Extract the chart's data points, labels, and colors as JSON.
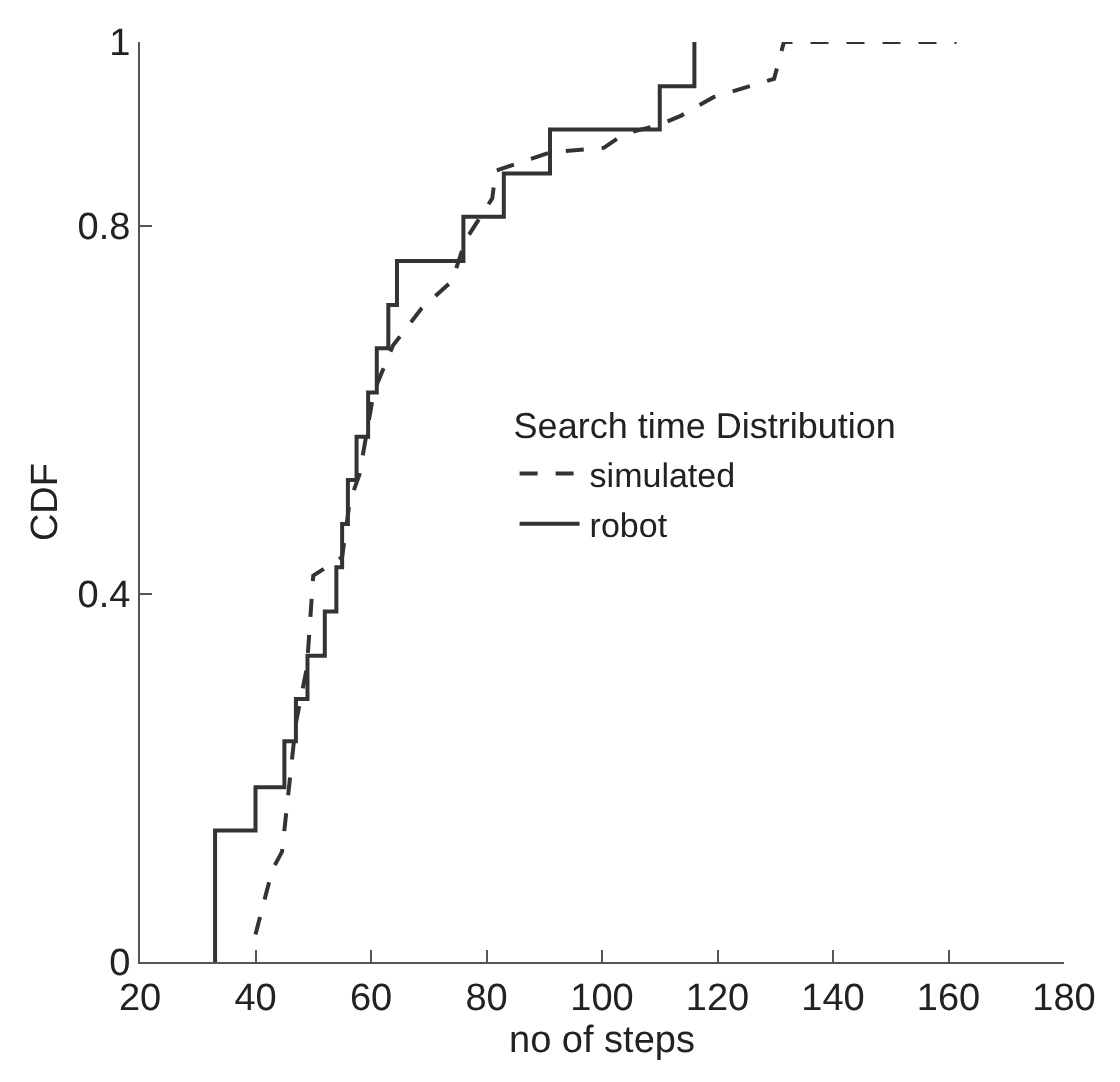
{
  "chart_data": {
    "type": "line",
    "xlabel": "no of steps",
    "ylabel": "CDF",
    "legend_title": "Search time Distribution",
    "xlim": [
      20,
      180
    ],
    "xticks": [
      20,
      40,
      60,
      80,
      100,
      120,
      140,
      160,
      180
    ],
    "ylim": [
      0,
      1
    ],
    "yticks": [
      0,
      0.4,
      0.8,
      1
    ],
    "legend": "right",
    "marker": "none",
    "series": [
      {
        "name": "simulated",
        "color": "#333333",
        "line_style": "dashed",
        "x": [
          40,
          42.9,
          44.6,
          45.8,
          47,
          48.9,
          50,
          55,
          56.3,
          58,
          60.5,
          63.8,
          68.7,
          74,
          76.4,
          81,
          81.6,
          86.3,
          91,
          100.3,
          103.8,
          110,
          113.7,
          119.3,
          129.8,
          131.5,
          161.4
        ],
        "values": [
          0.03,
          0.1,
          0.12,
          0.19,
          0.26,
          0.32,
          0.42,
          0.44,
          0.5,
          0.53,
          0.62,
          0.67,
          0.71,
          0.74,
          0.785,
          0.83,
          0.86,
          0.87,
          0.88,
          0.885,
          0.9,
          0.91,
          0.92,
          0.94,
          0.96,
          1.0,
          1.0
        ]
      },
      {
        "name": "robot",
        "color": "#333333",
        "type": "step",
        "line_style": "solid",
        "x": [
          33,
          33,
          40,
          45,
          47,
          49,
          52,
          54,
          55,
          56,
          57.5,
          59.5,
          61,
          63,
          64.5,
          76,
          83,
          91,
          110,
          116
        ],
        "values": [
          0,
          0.143,
          0.19,
          0.24,
          0.286,
          0.333,
          0.381,
          0.429,
          0.476,
          0.524,
          0.571,
          0.619,
          0.667,
          0.714,
          0.762,
          0.81,
          0.857,
          0.905,
          0.952,
          1.0
        ]
      }
    ]
  }
}
